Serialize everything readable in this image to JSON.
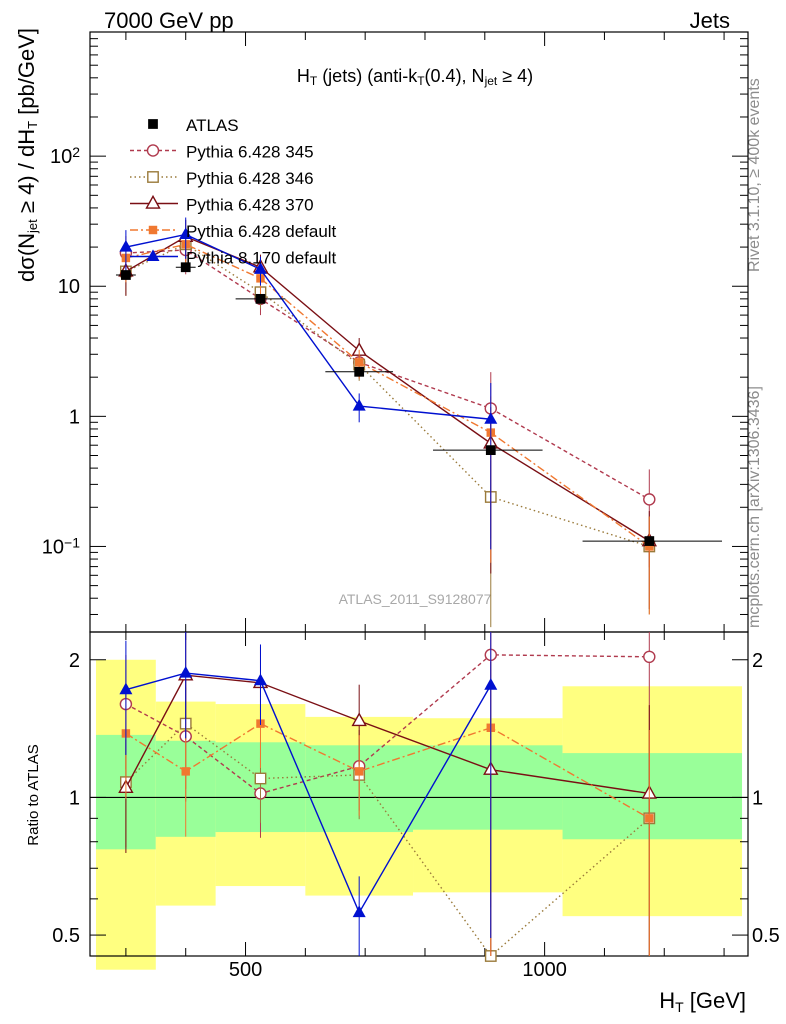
{
  "header": {
    "left": "7000 GeV pp",
    "right": "Jets"
  },
  "side_labels": {
    "rivet": "Rivet 3.1.10, ≥ 400k events",
    "mcplots": "mcplots.cern.ch [arXiv:1306.3436]"
  },
  "chart_data": {
    "type": "line",
    "title": "H_T (jets) (anti-k_T(0.4), N_jet ≥ 4)",
    "analysis_id": "ATLAS_2011_S9128077",
    "xlabel": "H_T [GeV]",
    "ylabel": "dσ(N_jet ≥ 4) / dH_T [pb/GeV]",
    "ratio_ylabel": "Ratio to ATLAS",
    "xlim": [
      240,
      1340
    ],
    "ylim": [
      0.022,
      900
    ],
    "yscale": "log",
    "ratio_ylim": [
      0.45,
      2.3
    ],
    "ratio_yscale": "log",
    "x_ticks": [
      500,
      1000
    ],
    "y_tick_labels": [
      "10^2",
      "10",
      "1",
      "10^-1"
    ],
    "ratio_y_ticks": [
      0.5,
      1,
      2
    ],
    "legend_position": "top-left",
    "x": [
      300,
      400,
      525,
      690,
      910,
      1175
    ],
    "bin_edges": [
      [
        250,
        350
      ],
      [
        350,
        450
      ],
      [
        450,
        600
      ],
      [
        600,
        780
      ],
      [
        780,
        1030
      ],
      [
        1030,
        1330
      ]
    ],
    "atlas": {
      "name": "ATLAS",
      "values": [
        12.2,
        14.0,
        8.0,
        2.2,
        0.55,
        0.11
      ],
      "ratio_band_inner": [
        [
          0.77,
          1.37
        ],
        [
          0.82,
          1.33
        ],
        [
          0.84,
          1.32
        ],
        [
          0.84,
          1.3
        ],
        [
          0.85,
          1.3
        ],
        [
          0.81,
          1.25
        ]
      ],
      "ratio_band_outer": [
        [
          0.42,
          2.0
        ],
        [
          0.58,
          1.62
        ],
        [
          0.64,
          1.6
        ],
        [
          0.61,
          1.5
        ],
        [
          0.62,
          1.49
        ],
        [
          0.55,
          1.75
        ]
      ]
    },
    "series": [
      {
        "name": "Pythia 6.428 345",
        "color": "#b03a4e",
        "dash": "4,3",
        "marker": "circle-open",
        "values": [
          18.0,
          19.0,
          8.0,
          2.6,
          1.15,
          0.23
        ],
        "ratio": [
          1.6,
          1.36,
          1.02,
          1.17,
          2.05,
          2.03
        ]
      },
      {
        "name": "Pythia 6.428 346",
        "color": "#9a7a3a",
        "dash": "1.5,3",
        "marker": "square-open",
        "values": [
          13.0,
          21.0,
          9.0,
          2.5,
          0.24,
          0.1
        ],
        "ratio": [
          1.08,
          1.45,
          1.1,
          1.12,
          0.4,
          0.9
        ]
      },
      {
        "name": "Pythia 6.428 370",
        "color": "#7a0f14",
        "dash": "",
        "marker": "triangle-open",
        "values": [
          13.0,
          24.0,
          14.0,
          3.2,
          0.62,
          0.11
        ],
        "ratio": [
          1.05,
          1.85,
          1.78,
          1.47,
          1.15,
          1.02
        ]
      },
      {
        "name": "Pythia 6.428 default",
        "color": "#f07830",
        "dash": "8,3,2,3",
        "marker": "square-filled",
        "values": [
          16.5,
          21.0,
          11.5,
          2.6,
          0.75,
          0.1
        ],
        "ratio": [
          1.38,
          1.14,
          1.45,
          1.14,
          1.42,
          0.9
        ]
      },
      {
        "name": "Pythia 8.170 default",
        "color": "#0010d0",
        "dash": "",
        "marker": "triangle-filled",
        "values": [
          20.0,
          25.0,
          13.5,
          1.2,
          0.95,
          0.0
        ],
        "ratio": [
          1.72,
          1.87,
          1.8,
          0.56,
          1.76,
          0.0
        ]
      }
    ]
  }
}
